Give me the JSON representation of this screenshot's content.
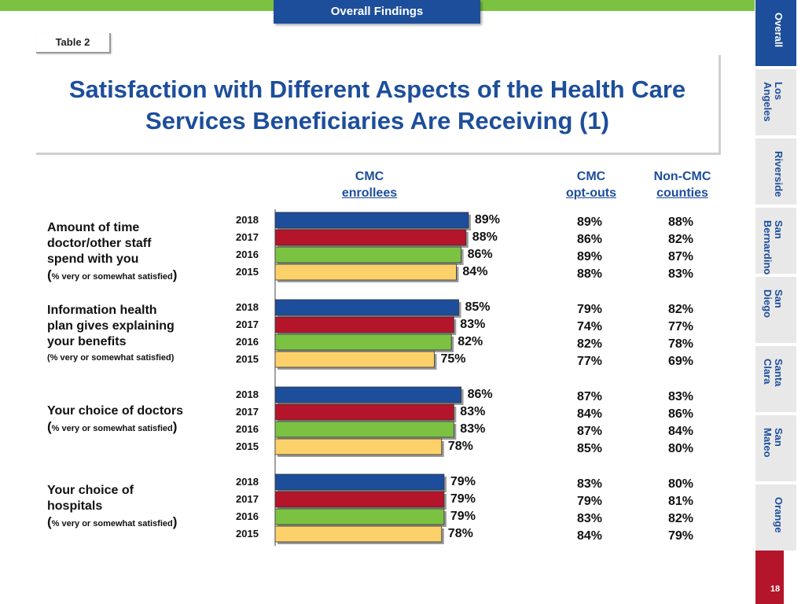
{
  "header": {
    "tab_label": "Overall Findings",
    "table_label": "Table 2"
  },
  "title": {
    "line1": "Satisfaction with Different Aspects of the Health Care",
    "line2": "Services Beneficiaries Are Receiving (1)"
  },
  "columns": {
    "cmc_line1": "CMC",
    "cmc_line2": "enrollees",
    "optout_line1": "CMC",
    "optout_line2": "opt-outs",
    "noncmc_line1": "Non-CMC",
    "noncmc_line2": "counties"
  },
  "colors": {
    "2018": "#1d4e9b",
    "2017": "#b4152b",
    "2016": "#7cc242",
    "2015": "#fcd16a"
  },
  "groups": [
    {
      "label_lines": [
        "Amount of time",
        "doctor/other staff",
        "spend with you"
      ],
      "note": "% very or somewhat satisfied",
      "note_style": "paren",
      "years": [
        "2018",
        "2017",
        "2016",
        "2015"
      ],
      "cmc_labels": [
        "89%",
        "88%",
        "86%",
        "84%"
      ],
      "optouts": [
        "89%",
        "86%",
        "89%",
        "88%"
      ],
      "noncmc": [
        "88%",
        "82%",
        "87%",
        "83%"
      ]
    },
    {
      "label_lines": [
        "Information health",
        "plan gives explaining",
        "your benefits"
      ],
      "note": "(% very or somewhat satisfied)",
      "note_style": "plain",
      "years": [
        "2018",
        "2017",
        "2016",
        "2015"
      ],
      "cmc_labels": [
        "85%",
        "83%",
        "82%",
        "75%"
      ],
      "optouts": [
        "79%",
        "74%",
        "82%",
        "77%"
      ],
      "noncmc": [
        "82%",
        "77%",
        "78%",
        "69%"
      ]
    },
    {
      "label_lines": [
        "Your choice of doctors"
      ],
      "note": "% very or somewhat satisfied",
      "note_style": "paren",
      "years": [
        "2018",
        "2017",
        "2016",
        "2015"
      ],
      "cmc_labels": [
        "86%",
        "83%",
        "83%",
        "78%"
      ],
      "optouts": [
        "87%",
        "84%",
        "87%",
        "85%"
      ],
      "noncmc": [
        "83%",
        "86%",
        "84%",
        "80%"
      ]
    },
    {
      "label_lines": [
        "Your choice of",
        "hospitals"
      ],
      "note": "% very or somewhat satisfied",
      "note_style": "paren",
      "years": [
        "2018",
        "2017",
        "2016",
        "2015"
      ],
      "cmc_labels": [
        "79%",
        "79%",
        "79%",
        "78%"
      ],
      "optouts": [
        "83%",
        "79%",
        "83%",
        "84%"
      ],
      "noncmc": [
        "80%",
        "81%",
        "82%",
        "79%"
      ]
    }
  ],
  "chart_data": {
    "type": "bar",
    "orientation": "horizontal",
    "title": "Satisfaction with Different Aspects of the Health Care Services Beneficiaries Are Receiving (1)",
    "categories": [
      "Amount of time doctor/other staff spend with you",
      "Information health plan gives explaining your benefits",
      "Your choice of doctors",
      "Your choice of hospitals"
    ],
    "series": [
      {
        "name": "2018",
        "values": [
          89,
          85,
          86,
          79
        ]
      },
      {
        "name": "2017",
        "values": [
          88,
          83,
          83,
          79
        ]
      },
      {
        "name": "2016",
        "values": [
          86,
          82,
          83,
          79
        ]
      },
      {
        "name": "2015",
        "values": [
          84,
          75,
          78,
          78
        ]
      }
    ],
    "xlim": [
      0,
      100
    ],
    "xlabel": "CMC enrollees (% very or somewhat satisfied)",
    "grid": false
  },
  "side_nav": [
    {
      "label": "Overall",
      "active": true
    },
    {
      "label": "Los\nAngeles",
      "active": false
    },
    {
      "label": "Riverside",
      "active": false
    },
    {
      "label": "San\nBernardino",
      "active": false
    },
    {
      "label": "San\nDiego",
      "active": false
    },
    {
      "label": "Santa\nClara",
      "active": false
    },
    {
      "label": "San\nMateo",
      "active": false
    },
    {
      "label": "Orange",
      "active": false
    }
  ],
  "page_number": "18"
}
